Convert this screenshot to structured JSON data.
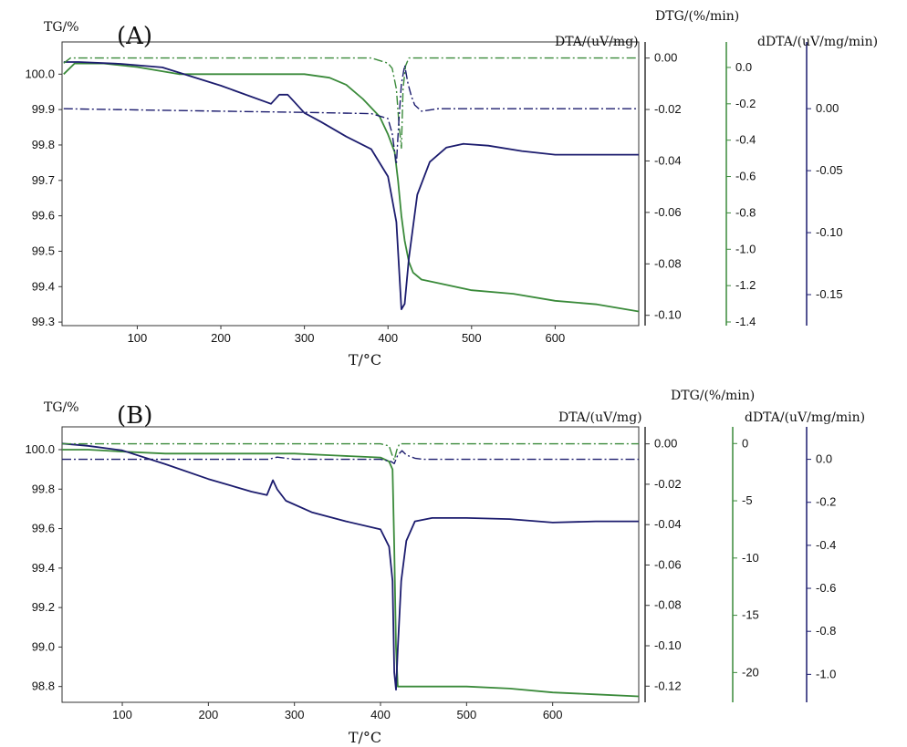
{
  "chart_data": [
    {
      "panel_label": "(A)",
      "type": "line",
      "xlabel": "T/°C",
      "xticks": [
        100,
        200,
        300,
        400,
        500,
        600
      ],
      "xlim": [
        10,
        700
      ],
      "axes": {
        "tg": {
          "label": "TG/%",
          "ylim": [
            99.29,
            100.06
          ],
          "ticks": [
            "100.0",
            "99.9",
            "99.8",
            "99.7",
            "99.6",
            "99.5",
            "99.4",
            "99.3"
          ],
          "tickvals": [
            100.0,
            99.9,
            99.8,
            99.7,
            99.6,
            99.5,
            99.4,
            99.3
          ]
        },
        "dtg": {
          "label": "DTG/(%/min)",
          "ylim": [
            -0.104,
            0.002
          ],
          "ticks": [
            "0.00",
            "-0.02",
            "-0.04",
            "-0.06",
            "-0.08",
            "-0.10"
          ],
          "tickvals": [
            0.0,
            -0.02,
            -0.04,
            -0.06,
            -0.08,
            -0.1
          ]
        },
        "dta": {
          "label": "DTA/(uV/mg)",
          "ylim": [
            -1.42,
            0.08
          ],
          "ticks": [
            "0.0",
            "-0.2",
            "-0.4",
            "-0.6",
            "-0.8",
            "-1.0",
            "-1.2",
            "-1.4"
          ],
          "tickvals": [
            0.0,
            -0.2,
            -0.4,
            -0.6,
            -0.8,
            -1.0,
            -1.2,
            -1.4
          ]
        },
        "ddta": {
          "label": "dDTA/(uV/mg/min)",
          "ylim": [
            -0.175,
            0.045
          ],
          "ticks": [
            "0.00",
            "-0.05",
            "-0.10",
            "-0.15"
          ],
          "tickvals": [
            0.0,
            -0.05,
            -0.1,
            -0.15
          ]
        }
      },
      "series": [
        {
          "role": "TG",
          "axis": "tg",
          "color": "#3a8a3a",
          "dash": "",
          "x": [
            12,
            25,
            60,
            100,
            150,
            200,
            250,
            300,
            330,
            350,
            370,
            390,
            400,
            408,
            412,
            416,
            420,
            425,
            430,
            440,
            460,
            500,
            550,
            600,
            650,
            700
          ],
          "y": [
            100.0,
            100.03,
            100.03,
            100.02,
            100.0,
            100.0,
            100.0,
            100.0,
            99.99,
            99.97,
            99.93,
            99.88,
            99.83,
            99.78,
            99.7,
            99.6,
            99.53,
            99.47,
            99.44,
            99.42,
            99.41,
            99.39,
            99.38,
            99.36,
            99.35,
            99.33
          ]
        },
        {
          "role": "DTA",
          "axis": "dta",
          "color": "#1c1c6e",
          "dash": "",
          "x": [
            12,
            30,
            80,
            130,
            200,
            260,
            270,
            280,
            290,
            300,
            320,
            350,
            380,
            400,
            410,
            416,
            420,
            425,
            435,
            450,
            470,
            490,
            520,
            560,
            600,
            650,
            700
          ],
          "y": [
            0.03,
            0.03,
            0.02,
            0.0,
            -0.1,
            -0.2,
            -0.15,
            -0.15,
            -0.2,
            -0.25,
            -0.3,
            -0.38,
            -0.45,
            -0.6,
            -0.85,
            -1.33,
            -1.3,
            -1.05,
            -0.7,
            -0.52,
            -0.44,
            -0.42,
            -0.43,
            -0.46,
            -0.48,
            -0.48,
            -0.48
          ]
        },
        {
          "role": "DTG",
          "axis": "dtg",
          "color": "#3a8a3a",
          "dash": "10,3,2,3",
          "x": [
            12,
            20,
            40,
            100,
            200,
            300,
            380,
            400,
            405,
            410,
            413,
            416,
            418,
            421,
            425,
            430,
            440,
            500,
            600,
            700
          ],
          "y": [
            -0.002,
            0.0,
            0.0,
            0.0,
            0.0,
            0.0,
            0.0,
            -0.002,
            -0.004,
            -0.012,
            -0.025,
            -0.035,
            -0.012,
            -0.003,
            0.0,
            0.0,
            0.0,
            0.0,
            0.0,
            0.0
          ]
        },
        {
          "role": "dDTA",
          "axis": "ddta",
          "color": "#1c1c6e",
          "dash": "10,3,2,3",
          "x": [
            12,
            100,
            200,
            300,
            380,
            400,
            405,
            410,
            413,
            416,
            420,
            424,
            428,
            432,
            440,
            460,
            500,
            600,
            700
          ],
          "y": [
            0.0,
            -0.001,
            -0.002,
            -0.003,
            -0.004,
            -0.008,
            -0.02,
            -0.045,
            -0.01,
            0.02,
            0.035,
            0.02,
            0.01,
            0.003,
            -0.002,
            0.0,
            0.0,
            0.0,
            0.0
          ]
        }
      ]
    },
    {
      "panel_label": "(B)",
      "type": "line",
      "xlabel": "T/°C",
      "xticks": [
        100,
        200,
        300,
        400,
        500,
        600
      ],
      "xlim": [
        30,
        700
      ],
      "axes": {
        "tg": {
          "label": "TG/%",
          "ylim": [
            98.72,
            100.06
          ],
          "ticks": [
            "100.0",
            "99.8",
            "99.6",
            "99.4",
            "99.2",
            "99.0",
            "98.8"
          ],
          "tickvals": [
            100.0,
            99.8,
            99.6,
            99.4,
            99.2,
            99.0,
            98.8
          ]
        },
        "dtg": {
          "label": "DTG/(%/min)",
          "ylim": [
            -0.128,
            0.003
          ],
          "ticks": [
            "0.00",
            "-0.02",
            "-0.04",
            "-0.06",
            "-0.08",
            "-0.10",
            "-0.12"
          ],
          "tickvals": [
            0.0,
            -0.02,
            -0.04,
            -0.06,
            -0.08,
            -0.1,
            -0.12
          ]
        },
        "dta": {
          "label": "DTA/(uV/mg)",
          "ylim": [
            -22.6,
            0.5
          ],
          "ticks": [
            "0",
            "-5",
            "-10",
            "-15",
            "-20"
          ],
          "tickvals": [
            0,
            -5,
            -10,
            -15,
            -20
          ]
        },
        "ddta": {
          "label": "dDTA/(uV/mg/min)",
          "ylim": [
            -1.13,
            0.1
          ],
          "ticks": [
            "0.0",
            "-0.2",
            "-0.4",
            "-0.6",
            "-0.8",
            "-1.0"
          ],
          "tickvals": [
            0.0,
            -0.2,
            -0.4,
            -0.6,
            -0.8,
            -1.0
          ]
        }
      },
      "series": [
        {
          "role": "TG",
          "axis": "tg",
          "color": "#3a8a3a",
          "dash": "",
          "x": [
            30,
            60,
            100,
            150,
            200,
            250,
            300,
            350,
            400,
            410,
            414,
            416,
            418,
            420,
            440,
            500,
            550,
            600,
            650,
            700
          ],
          "y": [
            100.0,
            100.0,
            99.99,
            99.98,
            99.98,
            99.98,
            99.98,
            99.97,
            99.96,
            99.94,
            99.9,
            99.5,
            99.0,
            98.8,
            98.8,
            98.8,
            98.79,
            98.77,
            98.76,
            98.75
          ]
        },
        {
          "role": "DTA",
          "axis": "dta",
          "color": "#1c1c6e",
          "dash": "",
          "x": [
            30,
            60,
            100,
            150,
            200,
            250,
            268,
            275,
            280,
            290,
            320,
            360,
            400,
            410,
            414,
            416,
            418,
            420,
            424,
            430,
            440,
            460,
            500,
            550,
            600,
            650,
            700
          ],
          "y": [
            0.0,
            -0.2,
            -0.6,
            -1.8,
            -3.1,
            -4.2,
            -4.5,
            -3.2,
            -4.0,
            -5.0,
            -6.0,
            -6.8,
            -7.5,
            -9.0,
            -12.0,
            -20.0,
            -21.5,
            -18.0,
            -12.0,
            -8.5,
            -6.8,
            -6.5,
            -6.5,
            -6.6,
            -6.9,
            -6.8,
            -6.8
          ]
        },
        {
          "role": "DTG",
          "axis": "dtg",
          "color": "#3a8a3a",
          "dash": "10,3,2,3",
          "x": [
            30,
            100,
            200,
            300,
            400,
            410,
            413,
            416,
            419,
            422,
            430,
            500,
            600,
            700
          ],
          "y": [
            0.0,
            0.0,
            0.0,
            0.0,
            0.0,
            -0.001,
            -0.005,
            -0.008,
            -0.003,
            0.0,
            0.0,
            0.0,
            0.0,
            0.0
          ]
        },
        {
          "role": "dDTA",
          "axis": "ddta",
          "color": "#1c1c6e",
          "dash": "10,3,2,3",
          "x": [
            30,
            100,
            200,
            270,
            280,
            300,
            400,
            412,
            416,
            420,
            425,
            430,
            440,
            450,
            500,
            600,
            700
          ],
          "y": [
            0.0,
            0.0,
            0.0,
            0.0,
            0.01,
            0.0,
            0.0,
            -0.01,
            -0.02,
            0.02,
            0.04,
            0.02,
            0.005,
            0.0,
            0.0,
            0.0,
            0.0
          ]
        }
      ]
    }
  ]
}
